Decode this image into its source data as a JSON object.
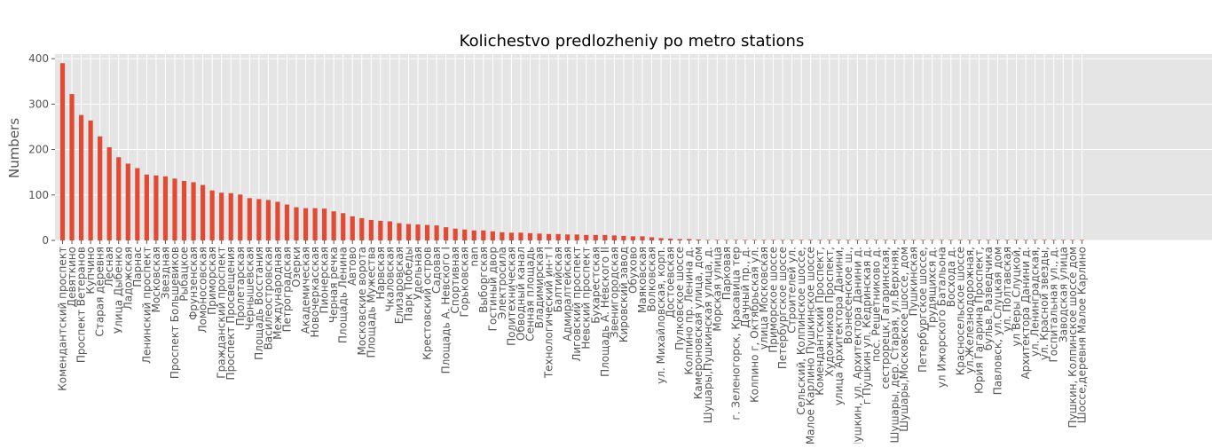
{
  "chart_data": {
    "type": "bar",
    "title": "Kolichestvo predlozheniy po metro stations",
    "xlabel": "",
    "ylabel": "Numbers",
    "ylim": [
      0,
      410
    ],
    "yticks": [
      0,
      100,
      200,
      300,
      400
    ],
    "grid": true,
    "legend": "none",
    "colors": {
      "bar": "#E24A33",
      "plot_background": "#E5E5E5",
      "grid": "#FFFFFF",
      "tick_text": "#555555"
    },
    "categories": [
      "Комендантский проспект",
      "Девяткино",
      "Проспект Ветеранов",
      "Купчино",
      "Старая деревня",
      "Лесная",
      "Улица Дыбенко",
      "Ладожская",
      "Парнас",
      "Ленинский проспект",
      "Московская",
      "Звездная",
      "Проспект Большевиков",
      "Рыбацкое",
      "Фрунзенская",
      "Ломоносовская",
      "Приморская",
      "Гражданский проспект",
      "Проспект Просвещения",
      "Пролетарская",
      "Чернышевская",
      "Площадь Восстания",
      "Василеостровская",
      "Международная",
      "Петроградская",
      "Озерки",
      "Академическая",
      "Новочеркасская",
      "Пионерская",
      "Черная речка",
      "Площадь Ленина",
      "Автово",
      "Московские ворота",
      "Площадь Мужества",
      "Нарвская",
      "Чкаловская",
      "Елизаровская",
      "Парк Победы",
      "Удельная",
      "Крестовский остров",
      "Садовая",
      "Площадь А. Невского I",
      "Спортивная",
      "Горьковская",
      "nan",
      "Выборгская",
      "Гостиный двор",
      "Электросила",
      "Политехническая",
      "Обводный канал",
      "Сенная площадь",
      "Владимирская",
      "Технологический ин-т I",
      "Балтийская",
      "Адмиралтейская",
      "Лиговский проспект",
      "Невский проспект",
      "Бухарестская",
      "Площадь А. Невского II",
      "Звенигородская",
      "Кировский завод",
      "Обухово",
      "Маяковская",
      "Волковская",
      "ул. Михайловская, корп.",
      "Достоевская",
      "Пулковское шоссе",
      "Колпино пр. Ленина д.",
      "Камероновская улица, дом",
      "Шушары,Пушкинская улица, д.",
      "Морская улица",
      "Парковая",
      "г. Зеленогорск, Красавица тер",
      "Дачный пр., д.",
      "Колпино г, Октябрьская ул.",
      "улица Московская",
      "Приморское шоссе",
      "Петербургское шоссе",
      "Строителей ул.",
      "Сельский, Колпинское шоссе,",
      "Малое Карлино Пушкинское шоссе",
      "Комендантский Проспект,",
      "Художников Проспект,",
      "улица Архитектора Данини,",
      "Вознесенское ш.,",
      "Пушкин, ул. Архитектора Данини д.",
      "г Пушкин ул. Кедринская д.",
      "пос. Решетниково д.",
      "сестрорецк,Гагаринская,",
      "Шушары, дер. Старая, ул.Верхняя,",
      "Шушары,Московское шоссе, дом",
      "Пушкинская",
      "Петербургское шоссе,",
      "Трудящихся д.",
      "ул Ижорского Батальона",
      "Восхода д.",
      "Красносельское шоссе",
      "ул.Железнодорожная,",
      "Юрия Гагарина Проспект,",
      "бульв. Разведчика",
      "Павловск, ул.Слуцкая дом",
      "ул. Полтавская",
      "ул Веры Слуцкой,",
      "Архитектора Данини д.",
      "ул. Ленинградская,",
      "ул. Красной звезды,",
      "Госпитальная ул., д.",
      "Заводская улица",
      "Пушкин, Колпинское шоссе дом",
      "Шоссе,деревня Малое Карлино"
    ],
    "values": [
      390,
      322,
      276,
      264,
      229,
      205,
      183,
      169,
      159,
      145,
      143,
      141,
      136,
      131,
      128,
      122,
      110,
      105,
      104,
      101,
      93,
      91,
      89,
      85,
      79,
      73,
      71,
      71,
      70,
      64,
      60,
      53,
      49,
      45,
      43,
      42,
      38,
      36,
      35,
      34,
      33,
      29,
      26,
      24,
      22,
      22,
      20,
      18,
      17,
      17,
      16,
      15,
      14,
      14,
      13,
      13,
      12,
      12,
      12,
      11,
      10,
      9,
      9,
      7,
      5,
      4,
      3,
      3,
      2,
      1,
      1,
      1,
      1,
      1,
      1,
      1,
      1,
      1,
      1,
      1,
      1,
      1,
      1,
      1,
      1,
      1,
      1,
      1,
      1,
      1,
      1,
      1,
      1,
      1,
      1,
      1,
      1,
      1,
      1,
      1,
      1,
      1,
      1,
      1,
      1,
      1,
      1,
      1,
      1,
      1
    ]
  }
}
